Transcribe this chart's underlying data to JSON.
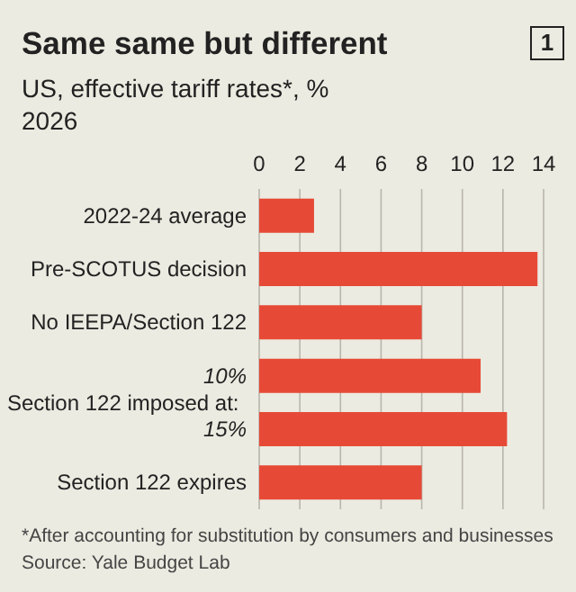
{
  "chart_data": {
    "type": "bar",
    "orientation": "horizontal",
    "title": "Same same but different",
    "subtitle": "US, effective tariff rates*, %",
    "xlabel": "2026",
    "categories": [
      "2022-24 average",
      "Pre-SCOTUS decision",
      "No IEEPA/Section 122",
      "10%",
      "15%",
      "Section 122 expires"
    ],
    "values": [
      2.7,
      13.7,
      8.0,
      10.9,
      12.2,
      8.0
    ],
    "color": "#e64a37",
    "xlim": [
      0,
      14
    ],
    "xticks": [
      0,
      2,
      4,
      6,
      8,
      10,
      12,
      14
    ],
    "grid": "x",
    "annotations": [
      "1",
      "Section 122 imposed at:",
      "*After accounting for substitution by consumers and businesses",
      "Source: Yale Budget Lab"
    ]
  }
}
